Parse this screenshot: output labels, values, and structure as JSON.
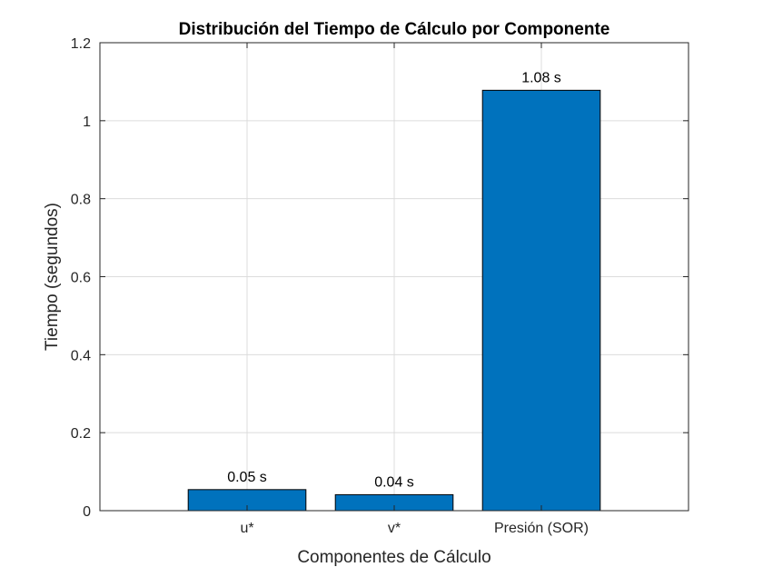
{
  "chart_data": {
    "type": "bar",
    "title": "Distribución del Tiempo de Cálculo por Componente",
    "xlabel": "Componentes de Cálculo",
    "ylabel": "Tiempo (segundos)",
    "categories": [
      "u*",
      "v*",
      "Presión (SOR)"
    ],
    "values": [
      0.054,
      0.041,
      1.078
    ],
    "data_labels": [
      "0.05 s",
      "0.04 s",
      "1.08 s"
    ],
    "ylim": [
      0,
      1.2
    ],
    "xlim": [
      0,
      4
    ],
    "yticks": [
      0,
      0.2,
      0.4,
      0.6,
      0.8,
      1,
      1.2
    ],
    "ytick_labels": [
      "0",
      "0.2",
      "0.4",
      "0.6",
      "0.8",
      "1",
      "1.2"
    ],
    "xticks": [
      1,
      2,
      3
    ],
    "grid": true,
    "bar_color": "#0072BD"
  }
}
